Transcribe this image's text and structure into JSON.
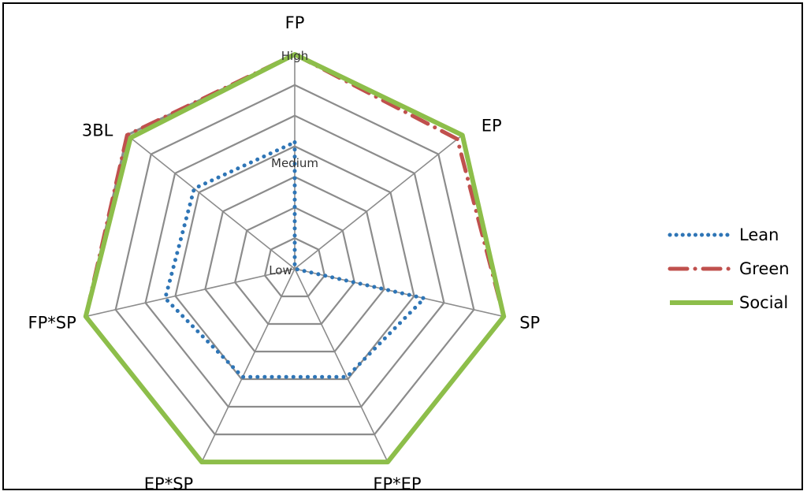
{
  "chart_data": {
    "type": "radar",
    "axes": [
      "FP",
      "EP",
      "SP",
      "FP*EP",
      "EP*SP",
      "FP*SP",
      "3BL"
    ],
    "levels": [
      "Low",
      "Medium",
      "High"
    ],
    "range": [
      0,
      1
    ],
    "grid_rings": 7,
    "series": [
      {
        "name": "Lean",
        "color": "#2E75B6",
        "style": "dotted",
        "values": [
          0.59,
          0.0,
          0.62,
          0.56,
          0.56,
          0.62,
          0.6
        ]
      },
      {
        "name": "Green",
        "color": "#C0504D",
        "style": "dash-dot",
        "values": [
          1.0,
          0.97,
          1.0,
          1.0,
          1.0,
          1.0,
          1.0
        ]
      },
      {
        "name": "Social",
        "color": "#8DBE4A",
        "style": "solid",
        "values": [
          1.0,
          1.0,
          1.0,
          1.0,
          1.0,
          1.0,
          0.98
        ]
      }
    ],
    "legend_position": "right"
  }
}
